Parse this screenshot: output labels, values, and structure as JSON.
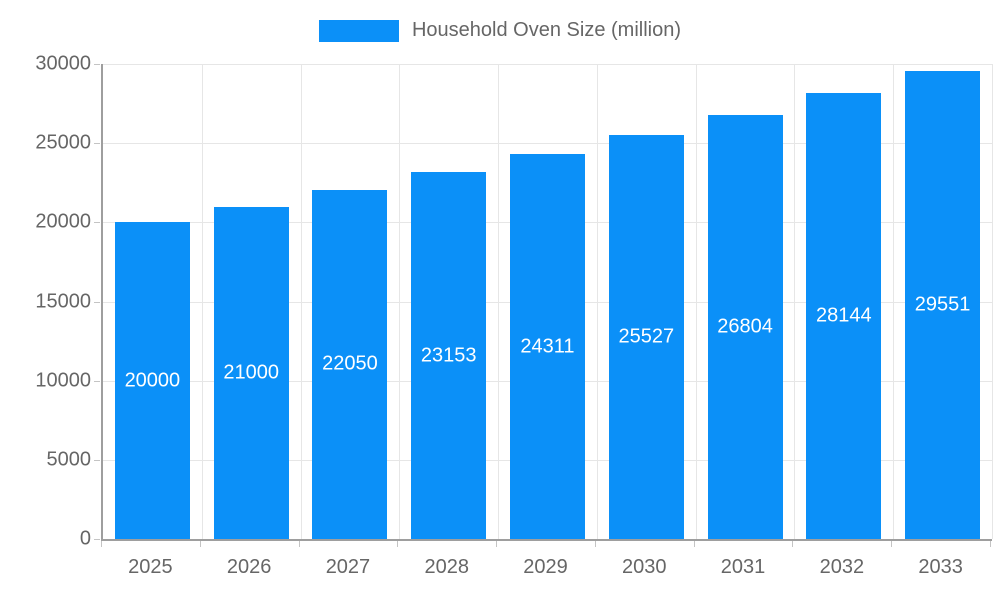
{
  "chart_data": {
    "type": "bar",
    "title": "Household Oven Size (million)",
    "categories": [
      "2025",
      "2026",
      "2027",
      "2028",
      "2029",
      "2030",
      "2031",
      "2032",
      "2033"
    ],
    "series": [
      {
        "name": "Household Oven Size (million)",
        "values": [
          20000,
          21000,
          22050,
          23153,
          24311,
          25527,
          26804,
          28144,
          29551
        ]
      }
    ],
    "xlabel": "",
    "ylabel": "",
    "ylim": [
      0,
      30000
    ],
    "ytick_step": 5000,
    "ytick_labels": [
      "0",
      "5000",
      "10000",
      "15000",
      "20000",
      "25000",
      "30000"
    ],
    "grid": true,
    "legend_position": "top-center",
    "value_label_position": "inside-middle"
  },
  "colors": {
    "bar": "#0b90f8",
    "grid": "#e6e6e6",
    "axis": "#9e9e9e",
    "tick": "#c4c4c4",
    "tick_text": "#666666",
    "value_text": "#ffffff"
  }
}
